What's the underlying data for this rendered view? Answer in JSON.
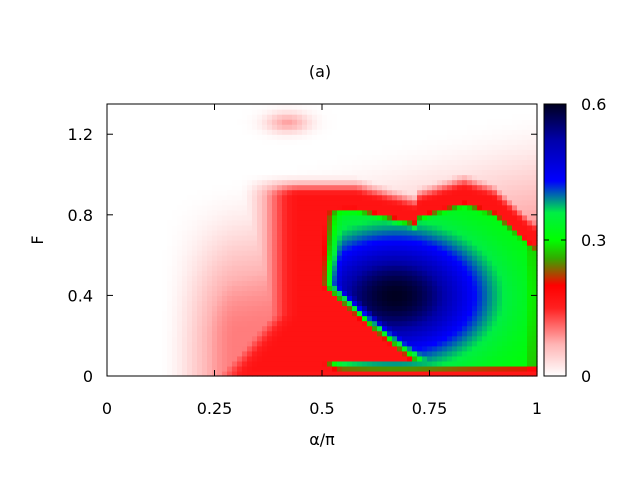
{
  "chart_data": {
    "type": "heatmap",
    "title": "(a)",
    "xlabel": "α/π",
    "ylabel": "F",
    "xlim": [
      0,
      1
    ],
    "ylim": [
      0,
      1.35
    ],
    "xticks": [
      {
        "value": 0,
        "label": "0"
      },
      {
        "value": 0.25,
        "label": "0.25"
      },
      {
        "value": 0.5,
        "label": "0.5"
      },
      {
        "value": 0.75,
        "label": "0.75"
      },
      {
        "value": 1,
        "label": "1"
      }
    ],
    "yticks": [
      {
        "value": 0,
        "label": "0"
      },
      {
        "value": 0.4,
        "label": "0.4"
      },
      {
        "value": 0.8,
        "label": "0.8"
      },
      {
        "value": 1.2,
        "label": "1.2"
      }
    ],
    "colorbar": {
      "range": [
        0,
        0.6
      ],
      "ticks": [
        {
          "value": 0,
          "label": "0"
        },
        {
          "value": 0.3,
          "label": "0.3"
        },
        {
          "value": 0.6,
          "label": "0.6"
        }
      ],
      "palette": [
        {
          "value": 0.0,
          "color": "#ffffff"
        },
        {
          "value": 0.07,
          "color": "#ffb4b4"
        },
        {
          "value": 0.15,
          "color": "#ff2020"
        },
        {
          "value": 0.2,
          "color": "#ff0000"
        },
        {
          "value": 0.26,
          "color": "#33aa00"
        },
        {
          "value": 0.3,
          "color": "#00ff00"
        },
        {
          "value": 0.36,
          "color": "#00ee44"
        },
        {
          "value": 0.43,
          "color": "#0000ff"
        },
        {
          "value": 0.52,
          "color": "#0000aa"
        },
        {
          "value": 0.6,
          "color": "#000020"
        }
      ]
    },
    "features": {
      "peak": {
        "x": 0.67,
        "y": 0.4,
        "value": 0.6
      },
      "high_region": {
        "x_range": [
          0.52,
          1.0
        ],
        "y_range": [
          0.05,
          0.85
        ]
      },
      "low_band": {
        "x_range": [
          0.3,
          1.0
        ],
        "y": 0.03,
        "value": 0.16
      }
    },
    "grid": false
  }
}
